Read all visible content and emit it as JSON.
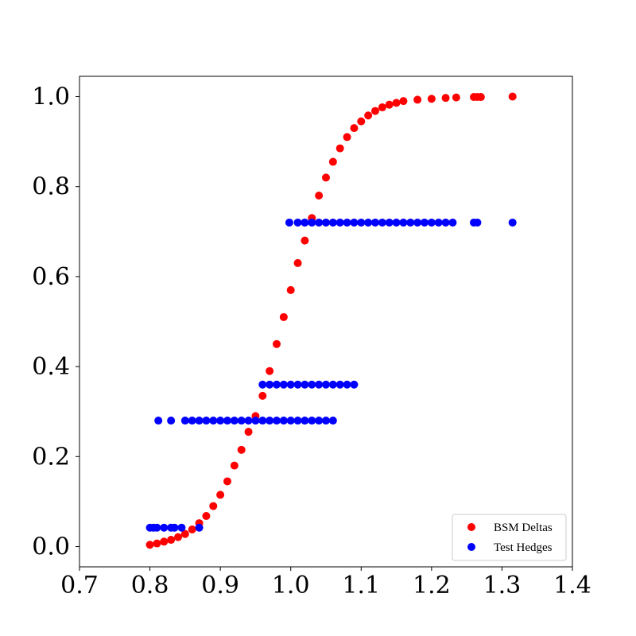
{
  "chart_data": {
    "type": "scatter",
    "title": "",
    "xlabel": "",
    "ylabel": "",
    "xlim": [
      0.7,
      1.4
    ],
    "ylim": [
      -0.045,
      1.045
    ],
    "x_ticks": [
      0.7,
      0.8,
      0.9,
      1.0,
      1.1,
      1.2,
      1.3,
      1.4
    ],
    "y_ticks": [
      0.0,
      0.2,
      0.4,
      0.6,
      0.8,
      1.0
    ],
    "x_tick_labels": [
      "0.7",
      "0.8",
      "0.9",
      "1.0",
      "1.1",
      "1.2",
      "1.3",
      "1.4"
    ],
    "y_tick_labels": [
      "0.0",
      "0.2",
      "0.4",
      "0.6",
      "0.8",
      "1.0"
    ],
    "grid": false,
    "legend_position": "bottom-right",
    "series": [
      {
        "name": "BSM Deltas",
        "color": "#ff0000",
        "points": [
          [
            0.8,
            0.004
          ],
          [
            0.81,
            0.007
          ],
          [
            0.82,
            0.011
          ],
          [
            0.83,
            0.015
          ],
          [
            0.84,
            0.021
          ],
          [
            0.85,
            0.028
          ],
          [
            0.86,
            0.038
          ],
          [
            0.87,
            0.052
          ],
          [
            0.88,
            0.068
          ],
          [
            0.89,
            0.09
          ],
          [
            0.9,
            0.115
          ],
          [
            0.91,
            0.145
          ],
          [
            0.92,
            0.18
          ],
          [
            0.93,
            0.215
          ],
          [
            0.94,
            0.255
          ],
          [
            0.95,
            0.29
          ],
          [
            0.96,
            0.335
          ],
          [
            0.97,
            0.39
          ],
          [
            0.98,
            0.45
          ],
          [
            0.99,
            0.51
          ],
          [
            1.0,
            0.57
          ],
          [
            1.01,
            0.63
          ],
          [
            1.02,
            0.68
          ],
          [
            1.03,
            0.73
          ],
          [
            1.04,
            0.78
          ],
          [
            1.05,
            0.82
          ],
          [
            1.06,
            0.855
          ],
          [
            1.07,
            0.885
          ],
          [
            1.08,
            0.91
          ],
          [
            1.09,
            0.93
          ],
          [
            1.1,
            0.945
          ],
          [
            1.11,
            0.958
          ],
          [
            1.12,
            0.968
          ],
          [
            1.13,
            0.976
          ],
          [
            1.14,
            0.982
          ],
          [
            1.15,
            0.986
          ],
          [
            1.16,
            0.99
          ],
          [
            1.18,
            0.993
          ],
          [
            1.2,
            0.995
          ],
          [
            1.22,
            0.997
          ],
          [
            1.235,
            0.998
          ],
          [
            1.26,
            0.999
          ],
          [
            1.265,
            0.999
          ],
          [
            1.27,
            0.999
          ],
          [
            1.315,
            1.0
          ]
        ]
      },
      {
        "name": "Test Hedges",
        "color": "#0000ff",
        "points": [
          [
            0.8,
            0.042
          ],
          [
            0.805,
            0.042
          ],
          [
            0.81,
            0.042
          ],
          [
            0.82,
            0.042
          ],
          [
            0.83,
            0.042
          ],
          [
            0.835,
            0.042
          ],
          [
            0.845,
            0.042
          ],
          [
            0.87,
            0.042
          ],
          [
            0.812,
            0.28
          ],
          [
            0.83,
            0.28
          ],
          [
            0.85,
            0.28
          ],
          [
            0.86,
            0.28
          ],
          [
            0.87,
            0.28
          ],
          [
            0.88,
            0.28
          ],
          [
            0.89,
            0.28
          ],
          [
            0.9,
            0.28
          ],
          [
            0.91,
            0.28
          ],
          [
            0.92,
            0.28
          ],
          [
            0.93,
            0.28
          ],
          [
            0.94,
            0.28
          ],
          [
            0.95,
            0.28
          ],
          [
            0.96,
            0.28
          ],
          [
            0.97,
            0.28
          ],
          [
            0.98,
            0.28
          ],
          [
            0.99,
            0.28
          ],
          [
            1.0,
            0.28
          ],
          [
            1.01,
            0.28
          ],
          [
            1.02,
            0.28
          ],
          [
            1.03,
            0.28
          ],
          [
            1.04,
            0.28
          ],
          [
            1.05,
            0.28
          ],
          [
            1.06,
            0.28
          ],
          [
            0.96,
            0.36
          ],
          [
            0.97,
            0.36
          ],
          [
            0.98,
            0.36
          ],
          [
            0.99,
            0.36
          ],
          [
            1.0,
            0.36
          ],
          [
            1.01,
            0.36
          ],
          [
            1.02,
            0.36
          ],
          [
            1.03,
            0.36
          ],
          [
            1.04,
            0.36
          ],
          [
            1.05,
            0.36
          ],
          [
            1.06,
            0.36
          ],
          [
            1.07,
            0.36
          ],
          [
            1.08,
            0.36
          ],
          [
            1.09,
            0.36
          ],
          [
            0.998,
            0.72
          ],
          [
            1.01,
            0.72
          ],
          [
            1.02,
            0.72
          ],
          [
            1.03,
            0.72
          ],
          [
            1.04,
            0.72
          ],
          [
            1.05,
            0.72
          ],
          [
            1.06,
            0.72
          ],
          [
            1.07,
            0.72
          ],
          [
            1.08,
            0.72
          ],
          [
            1.09,
            0.72
          ],
          [
            1.1,
            0.72
          ],
          [
            1.11,
            0.72
          ],
          [
            1.12,
            0.72
          ],
          [
            1.13,
            0.72
          ],
          [
            1.14,
            0.72
          ],
          [
            1.15,
            0.72
          ],
          [
            1.16,
            0.72
          ],
          [
            1.17,
            0.72
          ],
          [
            1.18,
            0.72
          ],
          [
            1.19,
            0.72
          ],
          [
            1.2,
            0.72
          ],
          [
            1.21,
            0.72
          ],
          [
            1.22,
            0.72
          ],
          [
            1.23,
            0.72
          ],
          [
            1.26,
            0.72
          ],
          [
            1.265,
            0.72
          ],
          [
            1.315,
            0.72
          ]
        ]
      }
    ]
  }
}
